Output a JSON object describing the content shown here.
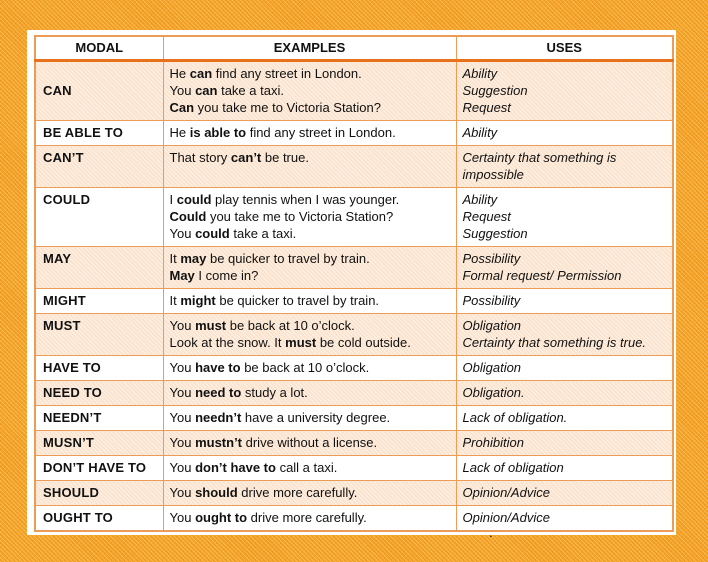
{
  "colors": {
    "frame_orange": "#F4A127",
    "table_border": "#ED9C57",
    "header_rule": "#E8711C",
    "row_alt_peach": "#FBE3CD",
    "text": "#111111"
  },
  "table": {
    "headers": [
      "MODAL",
      "EXAMPLES",
      "USES"
    ],
    "rows": [
      {
        "modal": "CAN",
        "examples": [
          "He **can** find any street in London.",
          "You **can** take a taxi.",
          "**Can** you take me to Victoria Station?"
        ],
        "uses": [
          "Ability",
          "Suggestion",
          "Request"
        ]
      },
      {
        "modal": "BE ABLE TO",
        "examples": [
          "He **is able to** find any street in London."
        ],
        "uses": [
          "Ability"
        ]
      },
      {
        "modal": "CAN’T",
        "examples": [
          "That story **can’t** be true."
        ],
        "uses": [
          "Certainty that something is impossible"
        ]
      },
      {
        "modal": "COULD",
        "examples": [
          "I **could** play tennis when I was younger.",
          "**Could** you take me to Victoria Station?",
          "You **could** take a taxi."
        ],
        "uses": [
          "Ability",
          "Request",
          "Suggestion"
        ]
      },
      {
        "modal": "MAY",
        "examples": [
          "It **may** be quicker to travel by train.",
          "**May** I come in?"
        ],
        "uses": [
          "Possibility",
          "Formal request/ Permission"
        ]
      },
      {
        "modal": "MIGHT",
        "examples": [
          "It **might** be quicker to travel by train."
        ],
        "uses": [
          "Possibility"
        ]
      },
      {
        "modal": "MUST",
        "examples": [
          "You **must** be back at 10 o’clock.",
          "Look at the snow. It **must** be cold outside."
        ],
        "uses": [
          "Obligation",
          "Certainty that something is true."
        ]
      },
      {
        "modal": "HAVE TO",
        "examples": [
          "You **have to** be back at 10 o’clock."
        ],
        "uses": [
          "Obligation"
        ]
      },
      {
        "modal": "NEED TO",
        "examples": [
          "You **need to** study a lot."
        ],
        "uses": [
          "Obligation."
        ]
      },
      {
        "modal": "NEEDN’T",
        "examples": [
          "You **needn’t** have a university degree."
        ],
        "uses": [
          "Lack of obligation."
        ]
      },
      {
        "modal": "MUSN’T",
        "examples": [
          "You **mustn’t** drive without a license."
        ],
        "uses": [
          "Prohibition"
        ]
      },
      {
        "modal": "DON’T HAVE TO",
        "examples": [
          "You **don’t have to** call a taxi."
        ],
        "uses": [
          "Lack of obligation"
        ]
      },
      {
        "modal": "SHOULD",
        "examples": [
          "You **should** drive more carefully."
        ],
        "uses": [
          "Opinion/Advice"
        ]
      },
      {
        "modal": "OUGHT TO",
        "examples": [
          "You **ought to** drive more carefully."
        ],
        "uses": [
          "Opinion/Advice"
        ]
      }
    ],
    "footer_mark": "."
  }
}
